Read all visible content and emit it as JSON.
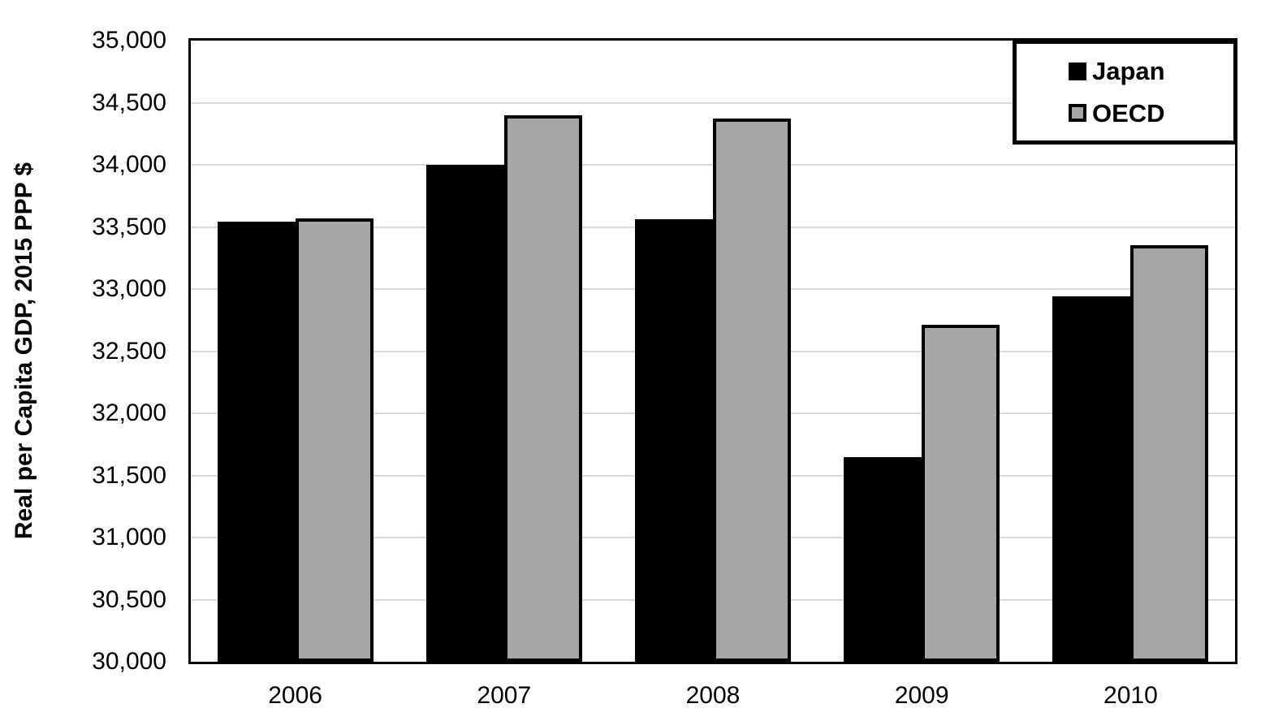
{
  "chart_data": {
    "type": "bar",
    "title": "",
    "xlabel": "",
    "ylabel": "Real per Capita GDP, 2015 PPP $",
    "categories": [
      "2006",
      "2007",
      "2008",
      "2009",
      "2010"
    ],
    "series": [
      {
        "name": "Japan",
        "fill_color": "#000000",
        "border_color": "#000000",
        "values": [
          33540,
          34000,
          33560,
          31650,
          32940
        ]
      },
      {
        "name": "OECD",
        "fill_color": "#a6a6a6",
        "border_color": "#000000",
        "values": [
          33570,
          34400,
          34370,
          32710,
          33350
        ]
      }
    ],
    "ylim": [
      30000,
      35000
    ],
    "ytick_step": 500,
    "yticks": [
      {
        "value": 30000,
        "label": "30,000"
      },
      {
        "value": 30500,
        "label": "30,500"
      },
      {
        "value": 31000,
        "label": "31,000"
      },
      {
        "value": 31500,
        "label": "31,500"
      },
      {
        "value": 32000,
        "label": "32,000"
      },
      {
        "value": 32500,
        "label": "32,500"
      },
      {
        "value": 33000,
        "label": "33,000"
      },
      {
        "value": 33500,
        "label": "33,500"
      },
      {
        "value": 34000,
        "label": "34,000"
      },
      {
        "value": 34500,
        "label": "34,500"
      },
      {
        "value": 35000,
        "label": "35,000"
      }
    ],
    "grid": true,
    "gridline_color": "#d9d9d9",
    "legend_position": "top-right"
  },
  "legend": {
    "items": [
      {
        "label": "Japan",
        "color": "#000000"
      },
      {
        "label": "OECD",
        "color": "#a6a6a6"
      }
    ]
  }
}
